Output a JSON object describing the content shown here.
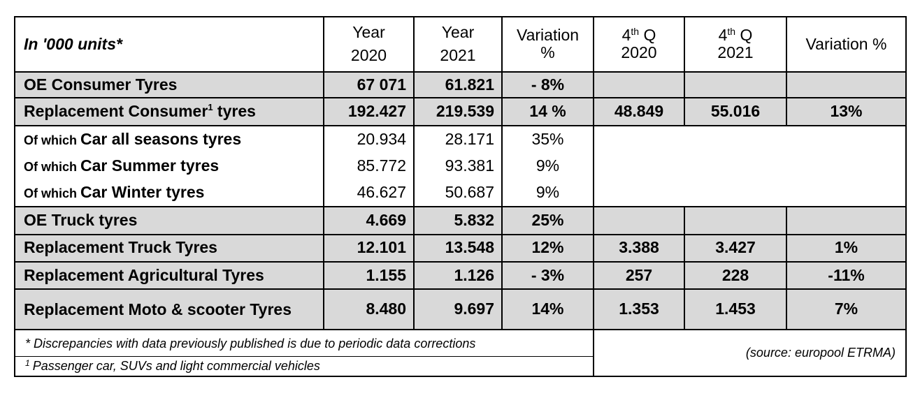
{
  "header": {
    "units": "In '000 units*",
    "year_label": "Year",
    "year_2020": "2020",
    "year_2021": "2021",
    "variation_pct": "Variation %",
    "variation_line1": "Variation",
    "variation_line2": "%",
    "q_label": "Q",
    "q_sup": "th",
    "q_num": "4",
    "q_2020": "2020",
    "q_2021": "2021"
  },
  "rows": [
    {
      "label": "OE Consumer Tyres",
      "y2020": "67 071",
      "y2021": "61.821",
      "var": "- 8%",
      "q2020": "",
      "q2021": "",
      "qvar": ""
    },
    {
      "label": "Replacement Consumer",
      "label_sup": "1",
      "label_suffix": " tyres",
      "y2020": "192.427",
      "y2021": "219.539",
      "var": "14 %",
      "q2020": "48.849",
      "q2021": "55.016",
      "qvar": "13%"
    },
    {
      "prefix": "Of which ",
      "label": "Car all seasons tyres",
      "y2020": "20.934",
      "y2021": "28.171",
      "var": "35%"
    },
    {
      "prefix": "Of which ",
      "label": "Car Summer tyres",
      "y2020": "85.772",
      "y2021": "93.381",
      "var": "9%"
    },
    {
      "prefix": "Of which ",
      "label": "Car Winter tyres",
      "y2020": "46.627",
      "y2021": "50.687",
      "var": "9%"
    },
    {
      "label": "OE Truck tyres",
      "y2020": "4.669",
      "y2021": "5.832",
      "var": "25%",
      "q2020": "",
      "q2021": "",
      "qvar": ""
    },
    {
      "label": "Replacement Truck Tyres",
      "y2020": "12.101",
      "y2021": "13.548",
      "var": "12%",
      "q2020": "3.388",
      "q2021": "3.427",
      "qvar": "1%"
    },
    {
      "label": "Replacement Agricultural Tyres",
      "y2020": "1.155",
      "y2021": "1.126",
      "var": "- 3%",
      "q2020": "257",
      "q2021": "228",
      "qvar": "-11%"
    },
    {
      "label": "Replacement Moto & scooter Tyres",
      "y2020": "8.480",
      "y2021": "9.697",
      "var": "14%",
      "q2020": "1.353",
      "q2021": "1.453",
      "qvar": "7%"
    }
  ],
  "footer": {
    "note_discrepancies": "* Discrepancies with data previously published is due to periodic data corrections",
    "note1_marker": "1",
    "note1_text": "Passenger car, SUVs and light commercial vehicles",
    "source": "(source: europool ETRMA)"
  },
  "colors": {
    "shaded_row": "#d9d9d9",
    "border": "#000000"
  }
}
